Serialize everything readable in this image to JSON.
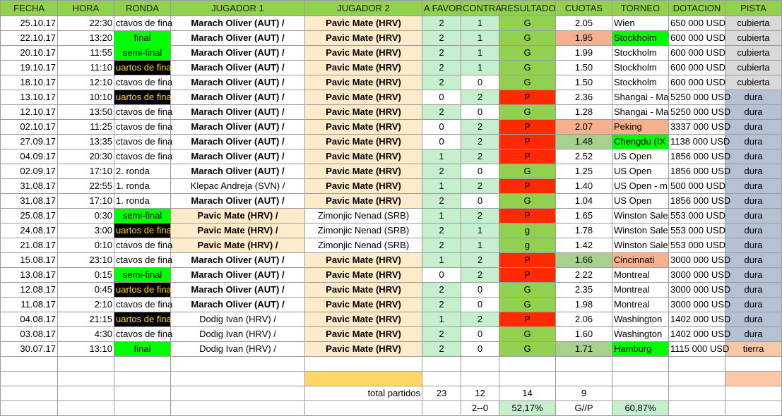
{
  "headers": [
    "FECHA",
    "HORA",
    "RONDA",
    "JUGADOR 1",
    "JUGADOR 2",
    "A FAVOR",
    "CONTRA",
    "RESULTADO",
    "CUOTAS",
    "TORNEO",
    "DOTACION",
    "PISTA"
  ],
  "rows": [
    {
      "fecha": "25.10.17",
      "hora": "22:30",
      "ronda": "ctavos de fina",
      "ronda_style": "",
      "j1": "Marach Oliver (AUT) /",
      "j1_bold": true,
      "j2": "Pavic Mate (HRV)",
      "j2_bold": true,
      "favor": "2",
      "contra": "1",
      "res": "G",
      "res_style": "g",
      "cuota": "2.05",
      "cuota_style": "",
      "torneo": "Wien",
      "torneo_style": "",
      "dot": "650 000 USD",
      "pista": "cubierta",
      "pista_style": "cub"
    },
    {
      "fecha": "22.10.17",
      "hora": "13:20",
      "ronda": "final",
      "ronda_style": "final",
      "j1": "Marach Oliver (AUT) /",
      "j1_bold": true,
      "j2": "Pavic Mate (HRV)",
      "j2_bold": true,
      "favor": "2",
      "contra": "1",
      "res": "G",
      "res_style": "g",
      "cuota": "1.95",
      "cuota_style": "orange",
      "torneo": "Stockholm",
      "torneo_style": "green",
      "dot": "600 000 USD",
      "pista": "cubierta",
      "pista_style": "cub"
    },
    {
      "fecha": "20.10.17",
      "hora": "11:55",
      "ronda": "semi-final",
      "ronda_style": "semi",
      "j1": "Marach Oliver (AUT) /",
      "j1_bold": true,
      "j2": "Pavic Mate (HRV)",
      "j2_bold": true,
      "favor": "2",
      "contra": "1",
      "res": "G",
      "res_style": "g",
      "cuota": "1.99",
      "cuota_style": "",
      "torneo": "Stockholm",
      "torneo_style": "",
      "dot": "600 000 USD",
      "pista": "cubierta",
      "pista_style": "cub"
    },
    {
      "fecha": "19.10.17",
      "hora": "11:10",
      "ronda": "uartos de fina",
      "ronda_style": "cuartos",
      "j1": "Marach Oliver (AUT) /",
      "j1_bold": true,
      "j2": "Pavic Mate (HRV)",
      "j2_bold": true,
      "favor": "2",
      "contra": "1",
      "res": "G",
      "res_style": "g",
      "cuota": "1.50",
      "cuota_style": "",
      "torneo": "Stockholm",
      "torneo_style": "",
      "dot": "600 000 USD",
      "pista": "cubierta",
      "pista_style": "cub"
    },
    {
      "fecha": "18.10.17",
      "hora": "12:10",
      "ronda": "ctavos de fina",
      "ronda_style": "",
      "j1": "Marach Oliver (AUT) /",
      "j1_bold": true,
      "j2": "Pavic Mate (HRV)",
      "j2_bold": true,
      "favor": "2",
      "contra": "0",
      "res": "G",
      "res_style": "g",
      "cuota": "1.50",
      "cuota_style": "",
      "torneo": "Stockholm",
      "torneo_style": "",
      "dot": "600 000 USD",
      "pista": "cubierta",
      "pista_style": "cub"
    },
    {
      "fecha": "13.10.17",
      "hora": "10:10",
      "ronda": "uartos de fina",
      "ronda_style": "cuartos",
      "j1": "Marach Oliver (AUT) /",
      "j1_bold": true,
      "j2": "Pavic Mate (HRV)",
      "j2_bold": true,
      "favor": "0",
      "contra": "2",
      "res": "P",
      "res_style": "p",
      "cuota": "2.36",
      "cuota_style": "",
      "torneo": "Shangai - Ma",
      "torneo_style": "",
      "dot": "5250 000 USD",
      "pista": "dura",
      "pista_style": "dura"
    },
    {
      "fecha": "12.10.17",
      "hora": "13:50",
      "ronda": "ctavos de fina",
      "ronda_style": "",
      "j1": "Marach Oliver (AUT) /",
      "j1_bold": true,
      "j2": "Pavic Mate (HRV)",
      "j2_bold": true,
      "favor": "2",
      "contra": "0",
      "res": "G",
      "res_style": "g",
      "cuota": "1.28",
      "cuota_style": "",
      "torneo": "Shangai - Ma",
      "torneo_style": "",
      "dot": "5250 000 USD",
      "pista": "dura",
      "pista_style": "dura"
    },
    {
      "fecha": "02.10.17",
      "hora": "11:25",
      "ronda": "ctavos de fina",
      "ronda_style": "",
      "j1": "Marach Oliver (AUT) /",
      "j1_bold": true,
      "j2": "Pavic Mate (HRV)",
      "j2_bold": true,
      "favor": "0",
      "contra": "2",
      "res": "P",
      "res_style": "p",
      "cuota": "2.07",
      "cuota_style": "orange",
      "torneo": "Peking",
      "torneo_style": "orange",
      "dot": "3337 000 USD",
      "pista": "dura",
      "pista_style": "dura"
    },
    {
      "fecha": "27.09.17",
      "hora": "13:35",
      "ronda": "ctavos de fina",
      "ronda_style": "",
      "j1": "Marach Oliver (AUT) /",
      "j1_bold": true,
      "j2": "Pavic Mate (HRV)",
      "j2_bold": true,
      "favor": "0",
      "contra": "2",
      "res": "P",
      "res_style": "p",
      "cuota": "1.48",
      "cuota_style": "green",
      "torneo": "Chengdu (IX",
      "torneo_style": "green",
      "dot": "1138 000 USD",
      "pista": "dura",
      "pista_style": "dura"
    },
    {
      "fecha": "04.09.17",
      "hora": "20:30",
      "ronda": "ctavos de fina",
      "ronda_style": "",
      "j1": "Marach Oliver (AUT) /",
      "j1_bold": true,
      "j2": "Pavic Mate (HRV)",
      "j2_bold": true,
      "favor": "1",
      "contra": "2",
      "res": "P",
      "res_style": "p",
      "cuota": "2.52",
      "cuota_style": "",
      "torneo": "US Open",
      "torneo_style": "",
      "dot": "1856 000 USD",
      "pista": "dura",
      "pista_style": "dura"
    },
    {
      "fecha": "02.09.17",
      "hora": "17:10",
      "ronda": "2. ronda",
      "ronda_style": "",
      "j1": "Marach Oliver (AUT) /",
      "j1_bold": true,
      "j2": "Pavic Mate (HRV)",
      "j2_bold": true,
      "favor": "2",
      "contra": "0",
      "res": "G",
      "res_style": "g",
      "cuota": "1.25",
      "cuota_style": "",
      "torneo": "US Open",
      "torneo_style": "",
      "dot": "1856 000 USD",
      "pista": "dura",
      "pista_style": "dura"
    },
    {
      "fecha": "31.08.17",
      "hora": "22:55",
      "ronda": "1. ronda",
      "ronda_style": "",
      "j1": "Klepac Andreja (SVN) /",
      "j1_bold": false,
      "j2": "Pavic Mate (HRV)",
      "j2_bold": true,
      "favor": "1",
      "contra": "2",
      "res": "P",
      "res_style": "p",
      "cuota": "1.40",
      "cuota_style": "",
      "torneo": "US Open - m",
      "torneo_style": "",
      "dot": "500 000 USD",
      "pista": "dura",
      "pista_style": "dura"
    },
    {
      "fecha": "31.08.17",
      "hora": "17:10",
      "ronda": "1. ronda",
      "ronda_style": "",
      "j1": "Marach Oliver (AUT) /",
      "j1_bold": true,
      "j2": "Pavic Mate (HRV)",
      "j2_bold": true,
      "favor": "2",
      "contra": "0",
      "res": "G",
      "res_style": "g",
      "cuota": "1.04",
      "cuota_style": "",
      "torneo": "US Open",
      "torneo_style": "",
      "dot": "1856 000 USD",
      "pista": "dura",
      "pista_style": "dura"
    },
    {
      "fecha": "25.08.17",
      "hora": "0:30",
      "ronda": "semi-final",
      "ronda_style": "semi",
      "j1": "Pavic Mate (HRV) /",
      "j1_bold": true,
      "j1_hl": true,
      "j2": "Zimonjic Nenad (SRB)",
      "j2_bold": false,
      "favor": "1",
      "contra": "2",
      "res": "P",
      "res_style": "p",
      "cuota": "1.65",
      "cuota_style": "",
      "torneo": "Winston Sale",
      "torneo_style": "",
      "dot": "553 000 USD",
      "pista": "dura",
      "pista_style": "dura"
    },
    {
      "fecha": "24.08.17",
      "hora": "3:00",
      "ronda": "uartos de fina",
      "ronda_style": "cuartos",
      "j1": "Pavic Mate (HRV) /",
      "j1_bold": true,
      "j1_hl": true,
      "j2": "Zimonjic Nenad (SRB)",
      "j2_bold": false,
      "favor": "2",
      "contra": "1",
      "res": "g",
      "res_style": "g",
      "cuota": "1.78",
      "cuota_style": "",
      "torneo": "Winston Sale",
      "torneo_style": "",
      "dot": "553 000 USD",
      "pista": "dura",
      "pista_style": "dura"
    },
    {
      "fecha": "21.08.17",
      "hora": "0:10",
      "ronda": "ctavos de fina",
      "ronda_style": "",
      "j1": "Pavic Mate (HRV) /",
      "j1_bold": true,
      "j1_hl": true,
      "j2": "Zimonjic Nenad (SRB)",
      "j2_bold": false,
      "favor": "2",
      "contra": "1",
      "res": "g",
      "res_style": "g",
      "cuota": "1.42",
      "cuota_style": "",
      "torneo": "Winston Sale",
      "torneo_style": "",
      "dot": "553 000 USD",
      "pista": "dura",
      "pista_style": "dura"
    },
    {
      "fecha": "15.08.17",
      "hora": "23:10",
      "ronda": "ctavos de fina",
      "ronda_style": "",
      "j1": "Marach Oliver (AUT) /",
      "j1_bold": true,
      "j2": "Pavic Mate (HRV)",
      "j2_bold": true,
      "favor": "1",
      "contra": "2",
      "res": "P",
      "res_style": "p",
      "cuota": "1.66",
      "cuota_style": "green",
      "torneo": "Cincinnati",
      "torneo_style": "orange",
      "dot": "3000 000 USD",
      "pista": "dura",
      "pista_style": "dura"
    },
    {
      "fecha": "13.08.17",
      "hora": "0:15",
      "ronda": "semi-final",
      "ronda_style": "semi",
      "j1": "Marach Oliver (AUT) /",
      "j1_bold": true,
      "j2": "Pavic Mate (HRV)",
      "j2_bold": true,
      "favor": "0",
      "contra": "2",
      "res": "P",
      "res_style": "p",
      "cuota": "2.22",
      "cuota_style": "",
      "torneo": "Montreal",
      "torneo_style": "",
      "dot": "3000 000 USD",
      "pista": "dura",
      "pista_style": "dura"
    },
    {
      "fecha": "12.08.17",
      "hora": "0:45",
      "ronda": "uartos de fina",
      "ronda_style": "cuartos",
      "j1": "Marach Oliver (AUT) /",
      "j1_bold": true,
      "j2": "Pavic Mate (HRV)",
      "j2_bold": true,
      "favor": "2",
      "contra": "0",
      "res": "G",
      "res_style": "g",
      "cuota": "2.35",
      "cuota_style": "",
      "torneo": "Montreal",
      "torneo_style": "",
      "dot": "3000 000 USD",
      "pista": "dura",
      "pista_style": "dura"
    },
    {
      "fecha": "11.08.17",
      "hora": "2:10",
      "ronda": "ctavos de fina",
      "ronda_style": "",
      "j1": "Marach Oliver (AUT) /",
      "j1_bold": true,
      "j2": "Pavic Mate (HRV)",
      "j2_bold": true,
      "favor": "2",
      "contra": "0",
      "res": "G",
      "res_style": "g",
      "cuota": "1.98",
      "cuota_style": "",
      "torneo": "Montreal",
      "torneo_style": "",
      "dot": "3000 000 USD",
      "pista": "dura",
      "pista_style": "dura"
    },
    {
      "fecha": "04.08.17",
      "hora": "21:15",
      "ronda": "uartos de fina",
      "ronda_style": "cuartos",
      "j1": "Dodig Ivan (HRV) /",
      "j1_bold": false,
      "j2": "Pavic Mate (HRV)",
      "j2_bold": true,
      "favor": "1",
      "contra": "2",
      "res": "P",
      "res_style": "p",
      "cuota": "2.06",
      "cuota_style": "",
      "torneo": "Washington",
      "torneo_style": "",
      "dot": "1402 000 USD",
      "pista": "dura",
      "pista_style": "dura"
    },
    {
      "fecha": "03.08.17",
      "hora": "4:30",
      "ronda": "ctavos de fina",
      "ronda_style": "",
      "j1": "Dodig Ivan (HRV) /",
      "j1_bold": false,
      "j2": "Pavic Mate (HRV)",
      "j2_bold": true,
      "favor": "2",
      "contra": "0",
      "res": "G",
      "res_style": "g",
      "cuota": "1.60",
      "cuota_style": "",
      "torneo": "Washington",
      "torneo_style": "",
      "dot": "1402 000 USD",
      "pista": "dura",
      "pista_style": "dura"
    },
    {
      "fecha": "30.07.17",
      "hora": "13:10",
      "ronda": "final",
      "ronda_style": "final",
      "j1": "Dodig Ivan (HRV) /",
      "j1_bold": false,
      "j2": "Pavic Mate (HRV)",
      "j2_bold": true,
      "favor": "2",
      "contra": "0",
      "res": "G",
      "res_style": "g",
      "cuota": "1.71",
      "cuota_style": "green",
      "torneo": "Hamburg",
      "torneo_style": "green",
      "dot": "1115 000 USD",
      "pista": "tierra",
      "pista_style": "tierra"
    }
  ],
  "summary": {
    "total_label": "total partidos",
    "total": "23",
    "contra_total": "12",
    "res_total": "14",
    "cuota_total": "9",
    "ratio_label": "2--0",
    "pct1": "52,17%",
    "gp_label": "G//P",
    "pct2": "60,87%"
  }
}
